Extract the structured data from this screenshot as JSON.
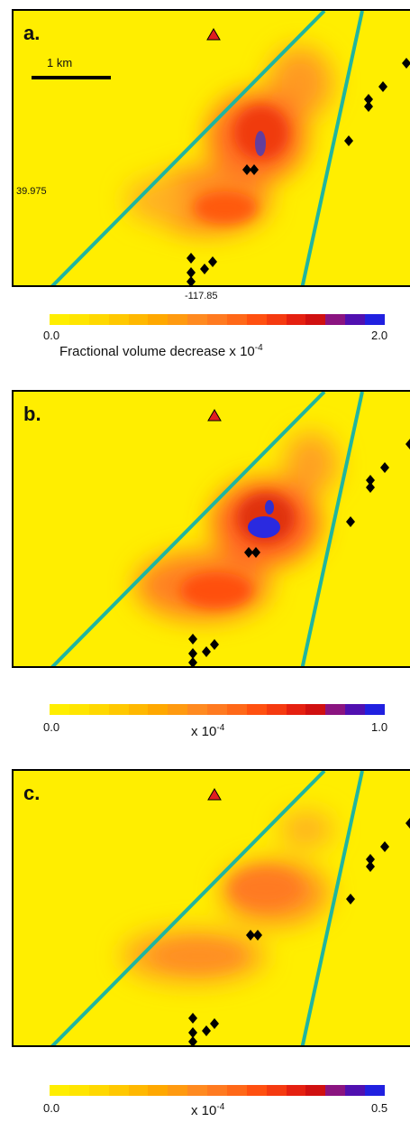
{
  "panels": [
    {
      "label": "a.",
      "scale_bar_label": "1 km",
      "lat_label": "39.975",
      "lon_label": "-117.85",
      "colorbar": {
        "min": "0.0",
        "max": "2.0",
        "title_text": "Fractional volume decrease x 10",
        "exponent": "-4"
      }
    },
    {
      "label": "b.",
      "colorbar": {
        "min": "0.0",
        "max": "1.0",
        "title_text": "x 10",
        "exponent": "-4"
      }
    },
    {
      "label": "c.",
      "colorbar": {
        "min": "0.0",
        "max": "0.5",
        "title_text": "x 10",
        "exponent": "-4"
      }
    }
  ],
  "colors": {
    "background_yellow": "#ffee00",
    "fault_line": "#1fb5a0",
    "station_triangle": "#e02020",
    "colorbar": [
      "#ffee00",
      "#ffe500",
      "#ffd800",
      "#ffc800",
      "#ffb800",
      "#ffa800",
      "#ff9a10",
      "#ff8a20",
      "#ff7a20",
      "#ff6818",
      "#ff5010",
      "#f53a10",
      "#e52010",
      "#d01010",
      "#8a1480",
      "#5010b0",
      "#2020e0"
    ]
  }
}
